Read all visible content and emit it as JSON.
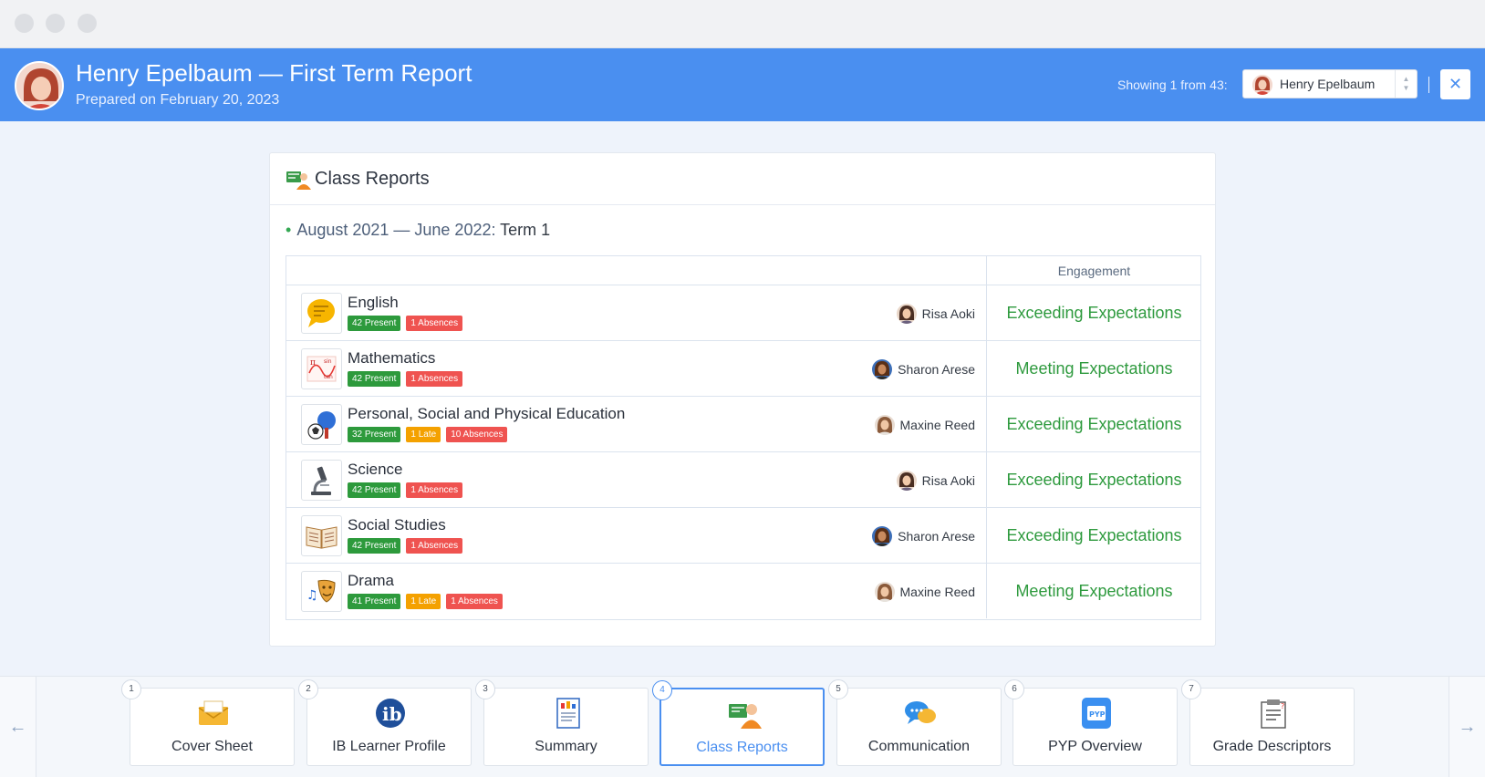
{
  "header": {
    "title": "Henry Epelbaum — First Term Report",
    "subtitle": "Prepared on February 20, 2023",
    "showing_label": "Showing 1 from 43:",
    "selected_student": "Henry Epelbaum",
    "close_icon": "close-icon",
    "accent": "#4a8ff0"
  },
  "card": {
    "title": "Class Reports",
    "term_range": "August 2021 — June 2022:",
    "term_name": "Term 1",
    "engagement_header": "Engagement",
    "rows": [
      {
        "subject": "English",
        "teacher": "Risa Aoki",
        "engagement": "Exceeding Expectations",
        "badges": [
          {
            "text": "42 Present",
            "kind": "green"
          },
          {
            "text": "1 Absences",
            "kind": "red"
          }
        ]
      },
      {
        "subject": "Mathematics",
        "teacher": "Sharon Arese",
        "engagement": "Meeting Expectations",
        "badges": [
          {
            "text": "42 Present",
            "kind": "green"
          },
          {
            "text": "1 Absences",
            "kind": "red"
          }
        ]
      },
      {
        "subject": "Personal, Social and Physical Education",
        "teacher": "Maxine Reed",
        "engagement": "Exceeding Expectations",
        "badges": [
          {
            "text": "32 Present",
            "kind": "green"
          },
          {
            "text": "1 Late",
            "kind": "orange"
          },
          {
            "text": "10 Absences",
            "kind": "red"
          }
        ]
      },
      {
        "subject": "Science",
        "teacher": "Risa Aoki",
        "engagement": "Exceeding Expectations",
        "badges": [
          {
            "text": "42 Present",
            "kind": "green"
          },
          {
            "text": "1 Absences",
            "kind": "red"
          }
        ]
      },
      {
        "subject": "Social Studies",
        "teacher": "Sharon Arese",
        "engagement": "Exceeding Expectations",
        "badges": [
          {
            "text": "42 Present",
            "kind": "green"
          },
          {
            "text": "1 Absences",
            "kind": "red"
          }
        ]
      },
      {
        "subject": "Drama",
        "teacher": "Maxine Reed",
        "engagement": "Meeting Expectations",
        "badges": [
          {
            "text": "41 Present",
            "kind": "green"
          },
          {
            "text": "1 Late",
            "kind": "orange"
          },
          {
            "text": "1 Absences",
            "kind": "red"
          }
        ]
      }
    ]
  },
  "nav": {
    "prev_icon": "arrow-left-icon",
    "next_icon": "arrow-right-icon",
    "tiles": [
      {
        "num": "1",
        "label": "Cover Sheet",
        "icon": "envelope-icon",
        "active": false
      },
      {
        "num": "2",
        "label": "IB Learner Profile",
        "icon": "ib-logo-icon",
        "active": false
      },
      {
        "num": "3",
        "label": "Summary",
        "icon": "report-doc-icon",
        "active": false
      },
      {
        "num": "4",
        "label": "Class Reports",
        "icon": "class-reports-icon",
        "active": true
      },
      {
        "num": "5",
        "label": "Communication",
        "icon": "chat-bubbles-icon",
        "active": false
      },
      {
        "num": "6",
        "label": "PYP Overview",
        "icon": "pyp-icon",
        "active": false
      },
      {
        "num": "7",
        "label": "Grade Descriptors",
        "icon": "descriptor-doc-icon",
        "active": false
      }
    ]
  }
}
